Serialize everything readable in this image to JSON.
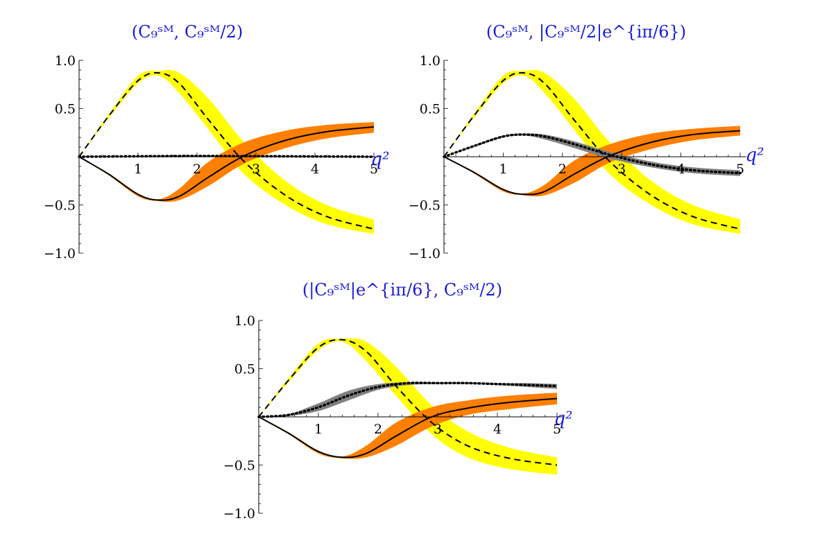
{
  "chart_data": [
    {
      "type": "line",
      "title": "(C₉ˢᴹ, C₉ˢᴹ/2)",
      "xlabel": "q²",
      "ylabel": "",
      "xlim": [
        0,
        5.1
      ],
      "ylim": [
        -1.0,
        1.0
      ],
      "x_ticks": [
        "1",
        "2",
        "3",
        "4",
        "5"
      ],
      "y_ticks": [
        "1.0",
        "0.5",
        "−0.5",
        "−1.0"
      ],
      "grid": false,
      "series": [
        {
          "style": "dashed",
          "color": "#000000",
          "band_color": "#ffff00",
          "x": [
            0,
            0.5,
            1.0,
            1.35,
            1.7,
            2.2,
            2.8,
            3.5,
            4.2,
            5.0
          ],
          "values": [
            0,
            0.42,
            0.79,
            0.87,
            0.76,
            0.38,
            -0.05,
            -0.4,
            -0.62,
            -0.75
          ],
          "band_upper": [
            0,
            0.44,
            0.84,
            0.89,
            0.87,
            0.6,
            0.15,
            -0.25,
            -0.5,
            -0.65
          ],
          "band_lower": [
            0,
            0.4,
            0.76,
            0.84,
            0.66,
            0.28,
            -0.18,
            -0.5,
            -0.7,
            -0.8
          ]
        },
        {
          "style": "solid",
          "color": "#000000",
          "band_color": "#ff7f00",
          "x": [
            0,
            0.5,
            1.0,
            1.35,
            1.7,
            2.2,
            2.8,
            3.5,
            4.2,
            5.0
          ],
          "values": [
            0,
            -0.18,
            -0.39,
            -0.45,
            -0.41,
            -0.21,
            0.01,
            0.17,
            0.26,
            0.31
          ],
          "band_upper": [
            0,
            -0.17,
            -0.38,
            -0.44,
            -0.33,
            -0.05,
            0.15,
            0.27,
            0.33,
            0.36
          ],
          "band_lower": [
            0,
            -0.19,
            -0.41,
            -0.46,
            -0.45,
            -0.3,
            -0.07,
            0.09,
            0.19,
            0.25
          ]
        },
        {
          "style": "dotted",
          "color": "#000000",
          "band_color": "#808080",
          "x": [
            0,
            1.0,
            2.0,
            3.0,
            4.0,
            5.0
          ],
          "values": [
            0,
            0.005,
            0.008,
            0.006,
            0.003,
            0.0
          ],
          "band_upper": [
            0,
            0.01,
            0.015,
            0.012,
            0.008,
            0.005
          ],
          "band_lower": [
            0,
            0.0,
            0.002,
            0.0,
            -0.002,
            -0.005
          ]
        }
      ]
    },
    {
      "type": "line",
      "title": "(C₉ˢᴹ, |C₉ˢᴹ/2|e^{iπ/6})",
      "xlabel": "q²",
      "ylabel": "",
      "xlim": [
        0,
        5.1
      ],
      "ylim": [
        -1.0,
        1.0
      ],
      "x_ticks": [
        "1",
        "2",
        "3",
        "4",
        "5"
      ],
      "y_ticks": [
        "1.0",
        "0.5",
        "−0.5",
        "−1.0"
      ],
      "grid": false,
      "series": [
        {
          "style": "dashed",
          "color": "#000000",
          "band_color": "#ffff00",
          "x": [
            0,
            0.5,
            1.0,
            1.35,
            1.7,
            2.2,
            2.8,
            3.5,
            4.2,
            5.0
          ],
          "values": [
            0,
            0.42,
            0.79,
            0.87,
            0.76,
            0.38,
            -0.05,
            -0.4,
            -0.62,
            -0.75
          ],
          "band_upper": [
            0,
            0.44,
            0.84,
            0.89,
            0.87,
            0.6,
            0.15,
            -0.25,
            -0.5,
            -0.65
          ],
          "band_lower": [
            0,
            0.4,
            0.76,
            0.84,
            0.66,
            0.28,
            -0.18,
            -0.5,
            -0.7,
            -0.8
          ]
        },
        {
          "style": "solid",
          "color": "#000000",
          "band_color": "#ff7f00",
          "x": [
            0,
            0.5,
            1.0,
            1.35,
            1.7,
            2.2,
            2.8,
            3.5,
            4.2,
            5.0
          ],
          "values": [
            0,
            -0.16,
            -0.34,
            -0.39,
            -0.36,
            -0.18,
            0.01,
            0.15,
            0.23,
            0.27
          ],
          "band_upper": [
            0,
            -0.15,
            -0.33,
            -0.38,
            -0.29,
            -0.04,
            0.13,
            0.24,
            0.29,
            0.32
          ],
          "band_lower": [
            0,
            -0.17,
            -0.36,
            -0.4,
            -0.4,
            -0.27,
            -0.06,
            0.08,
            0.17,
            0.22
          ]
        },
        {
          "style": "dotted",
          "color": "#000000",
          "band_color": "#808080",
          "x": [
            0,
            0.5,
            1.0,
            1.35,
            1.7,
            2.2,
            2.8,
            3.5,
            4.2,
            5.0
          ],
          "values": [
            0,
            0.11,
            0.21,
            0.23,
            0.21,
            0.13,
            0.02,
            -0.08,
            -0.14,
            -0.17
          ],
          "band_upper": [
            0,
            0.12,
            0.22,
            0.24,
            0.23,
            0.16,
            0.05,
            -0.05,
            -0.11,
            -0.14
          ],
          "band_lower": [
            0,
            0.1,
            0.2,
            0.22,
            0.18,
            0.09,
            -0.02,
            -0.11,
            -0.17,
            -0.2
          ]
        }
      ]
    },
    {
      "type": "line",
      "title": "(|C₉ˢᴹ|e^{iπ/6}, C₉ˢᴹ/2)",
      "xlabel": "q²",
      "ylabel": "",
      "xlim": [
        0,
        5.1
      ],
      "ylim": [
        -1.0,
        1.0
      ],
      "x_ticks": [
        "1",
        "2",
        "3",
        "4",
        "5"
      ],
      "y_ticks": [
        "1.0",
        "0.5",
        "−0.5",
        "−1.0"
      ],
      "grid": false,
      "series": [
        {
          "style": "dashed",
          "color": "#000000",
          "band_color": "#ffff00",
          "x": [
            0,
            0.5,
            1.0,
            1.4,
            1.8,
            2.3,
            2.9,
            3.5,
            4.2,
            5.0
          ],
          "values": [
            0,
            0.38,
            0.72,
            0.8,
            0.68,
            0.32,
            -0.06,
            -0.3,
            -0.43,
            -0.5
          ],
          "band_upper": [
            0,
            0.4,
            0.76,
            0.81,
            0.78,
            0.52,
            0.12,
            -0.15,
            -0.32,
            -0.42
          ],
          "band_lower": [
            0,
            0.36,
            0.69,
            0.78,
            0.58,
            0.22,
            -0.18,
            -0.42,
            -0.54,
            -0.6
          ]
        },
        {
          "style": "solid",
          "color": "#000000",
          "band_color": "#ff7f00",
          "x": [
            0,
            0.5,
            1.0,
            1.4,
            1.8,
            2.3,
            2.9,
            3.5,
            4.2,
            5.0
          ],
          "values": [
            0,
            -0.17,
            -0.36,
            -0.42,
            -0.38,
            -0.2,
            0.0,
            0.09,
            0.15,
            0.19
          ],
          "band_upper": [
            0,
            -0.16,
            -0.35,
            -0.41,
            -0.3,
            -0.06,
            0.1,
            0.17,
            0.22,
            0.25
          ],
          "band_lower": [
            0,
            -0.18,
            -0.38,
            -0.43,
            -0.42,
            -0.3,
            -0.1,
            0.02,
            0.08,
            0.13
          ]
        },
        {
          "style": "dotted",
          "color": "#000000",
          "band_color": "#808080",
          "x": [
            0,
            0.5,
            1.0,
            1.5,
            2.0,
            2.5,
            3.0,
            3.5,
            4.0,
            4.5,
            5.0
          ],
          "values": [
            0,
            0.02,
            0.1,
            0.22,
            0.31,
            0.35,
            0.35,
            0.35,
            0.34,
            0.33,
            0.32
          ],
          "band_upper": [
            0,
            0.03,
            0.14,
            0.27,
            0.34,
            0.36,
            0.36,
            0.36,
            0.35,
            0.35,
            0.34
          ],
          "band_lower": [
            0,
            0.01,
            0.06,
            0.17,
            0.28,
            0.33,
            0.34,
            0.34,
            0.33,
            0.31,
            0.29
          ]
        }
      ]
    }
  ]
}
